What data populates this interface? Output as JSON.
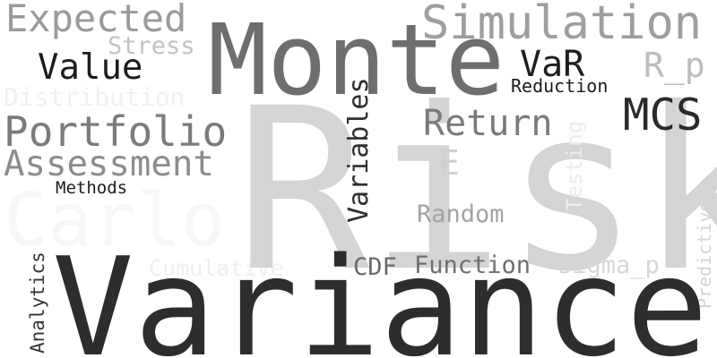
{
  "word_cloud": {
    "background": "#ffffff",
    "words": {
      "risk": {
        "text": "Risk",
        "color": "#d4d4d4",
        "orientation": "horizontal"
      },
      "variance": {
        "text": "Variance",
        "color": "#2d2d2d",
        "orientation": "horizontal"
      },
      "monte": {
        "text": "Monte",
        "color": "#6e6e6e",
        "orientation": "horizontal"
      },
      "carlo": {
        "text": "Carlo",
        "color": "#f7f7f7",
        "orientation": "horizontal"
      },
      "simulation": {
        "text": "Simulation",
        "color": "#9e9e9e",
        "orientation": "horizontal"
      },
      "expected": {
        "text": "Expected",
        "color": "#9a9a9a",
        "orientation": "horizontal"
      },
      "portfolio": {
        "text": "Portfolio",
        "color": "#7b7b7b",
        "orientation": "horizontal"
      },
      "assessment": {
        "text": "Assessment",
        "color": "#8c8c8c",
        "orientation": "horizontal"
      },
      "value": {
        "text": "Value",
        "color": "#1c1c1c",
        "orientation": "horizontal"
      },
      "mcs": {
        "text": "MCS",
        "color": "#2a2a2a",
        "orientation": "horizontal"
      },
      "return": {
        "text": "Return",
        "color": "#7a7a7a",
        "orientation": "horizontal"
      },
      "var": {
        "text": "VaR",
        "color": "#1e1e1e",
        "orientation": "horizontal"
      },
      "r_p": {
        "text": "R_p",
        "color": "#bdbdbd",
        "orientation": "horizontal"
      },
      "e": {
        "text": "E",
        "color": "#cfcfcf",
        "orientation": "horizontal"
      },
      "random": {
        "text": "Random",
        "color": "#a3a3a3",
        "orientation": "horizontal"
      },
      "function": {
        "text": "Function",
        "color": "#6f6f6f",
        "orientation": "horizontal"
      },
      "cdf": {
        "text": "CDF",
        "color": "#6a6a6a",
        "orientation": "horizontal"
      },
      "sigma_p": {
        "text": "sigma_p",
        "color": "#d6d6d6",
        "orientation": "horizontal"
      },
      "cumulative": {
        "text": "Cumulative",
        "color": "#f0f0f0",
        "orientation": "horizontal"
      },
      "distribution": {
        "text": "Distribution",
        "color": "#f1f1f1",
        "orientation": "horizontal"
      },
      "stress": {
        "text": "Stress",
        "color": "#c2c2c2",
        "orientation": "horizontal"
      },
      "reduction": {
        "text": "Reduction",
        "color": "#1c1c1c",
        "orientation": "horizontal"
      },
      "methods": {
        "text": "Methods",
        "color": "#1c1c1c",
        "orientation": "horizontal"
      },
      "variables": {
        "text": "Variables",
        "color": "#2e2e2e",
        "orientation": "vertical"
      },
      "analytics": {
        "text": "Analytics",
        "color": "#353535",
        "orientation": "vertical"
      },
      "testing": {
        "text": "Testing",
        "color": "#ececec",
        "orientation": "vertical"
      },
      "predictive": {
        "text": "Predictive",
        "color": "#d4d4d4",
        "orientation": "vertical"
      }
    }
  }
}
